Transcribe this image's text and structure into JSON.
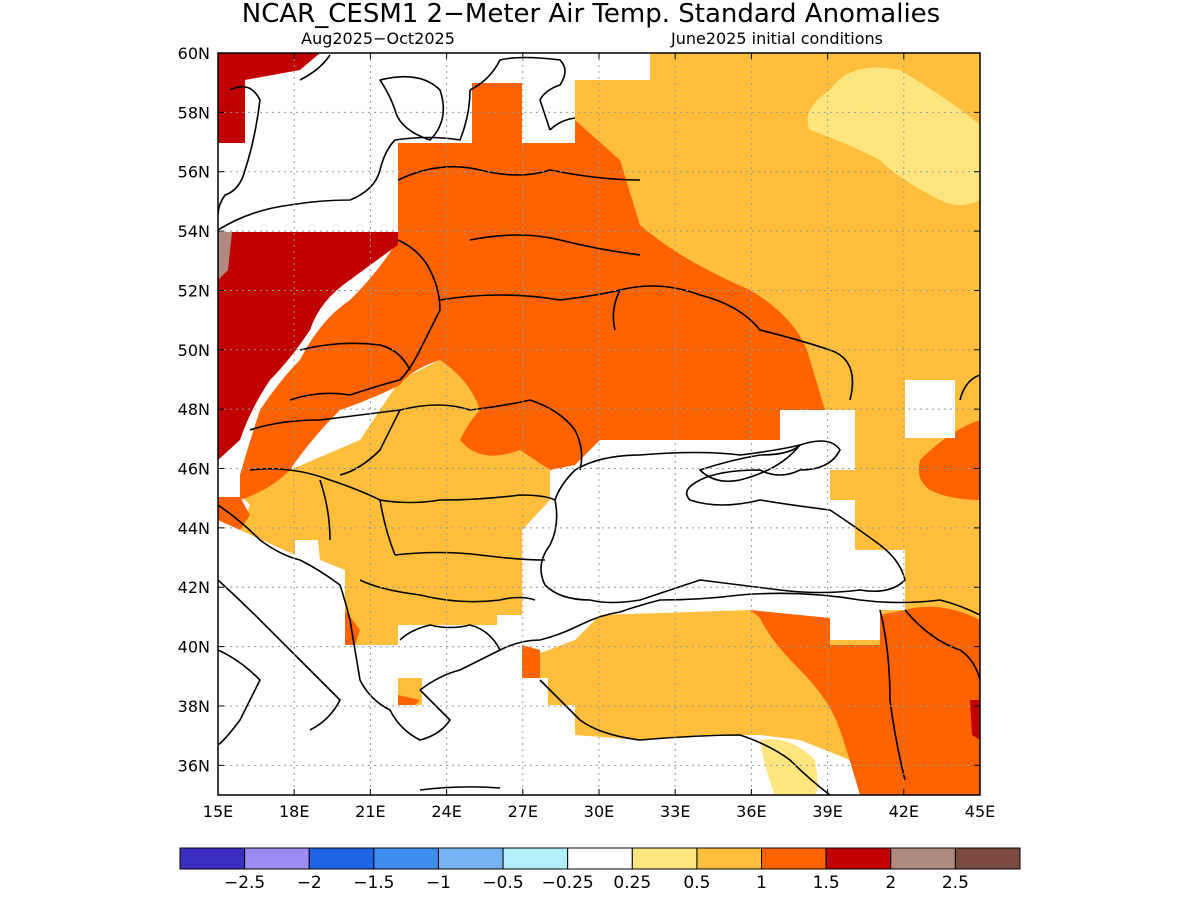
{
  "title": "NCAR_CESM1 2−Meter Air Temp. Standard Anomalies",
  "subtitle_left": "Aug2025−Oct2025",
  "subtitle_right": "June2025 initial conditions",
  "map": {
    "lon_range": [
      15,
      45
    ],
    "lat_range": [
      35,
      60
    ],
    "lon_ticks": [
      "15E",
      "18E",
      "21E",
      "24E",
      "27E",
      "30E",
      "33E",
      "36E",
      "39E",
      "42E",
      "45E"
    ],
    "lat_ticks": [
      "60N",
      "58N",
      "56N",
      "54N",
      "52N",
      "50N",
      "48N",
      "46N",
      "44N",
      "42N",
      "40N",
      "38N",
      "36N"
    ],
    "grid": true
  },
  "colorbar": {
    "colors": [
      "#3a2fbf",
      "#9d8bf4",
      "#1f64e6",
      "#3e8ef0",
      "#78b4f5",
      "#b3eefa",
      "#ffffff",
      "#ffe57e",
      "#ffbf3c",
      "#ff6300",
      "#c10000",
      "#b08a7e",
      "#7a4b3e"
    ],
    "labels": [
      "−2.5",
      "−2",
      "−1.5",
      "−1",
      "−0.5",
      "−0.25",
      "0.25",
      "0.5",
      "1",
      "1.5",
      "2",
      "2.5"
    ]
  }
}
